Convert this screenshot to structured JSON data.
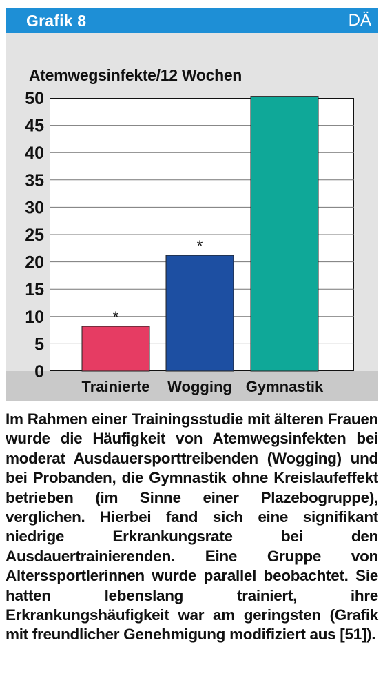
{
  "header": {
    "title": "Grafik 8",
    "logo": "DÄ"
  },
  "colors": {
    "header": "#1e8fd6",
    "bar_trainierte": "#e63c63",
    "bar_wogging": "#1d4fa2",
    "bar_gymnastik": "#0fa898",
    "frame": "#e3e3e3",
    "xband": "#c9c9c9"
  },
  "chart_data": {
    "type": "bar",
    "ylabel": "Atemwegsinfekte/12 Wochen",
    "categories": [
      "Trainierte",
      "Wogging",
      "Gymnastik"
    ],
    "values": [
      8.2,
      21.2,
      50.3
    ],
    "annotations": [
      "*",
      "*",
      ""
    ],
    "yticks": [
      "0",
      "5",
      "10",
      "15",
      "20",
      "25",
      "30",
      "35",
      "40",
      "45",
      "50"
    ],
    "ylim": [
      0,
      50
    ],
    "grid": true
  },
  "caption": "Im Rahmen einer Trainingsstudie mit älteren Frauen wurde die Häufigkeit von Atemwegsinfekten bei moderat Ausdauersporttreibenden (Wogging) und bei Probanden, die Gymnastik ohne Kreislaufeffekt betrieben (im Sinne einer Plazebogruppe), verglichen. Hierbei fand sich eine signifikant niedrige Erkrankungsrate bei den Ausdauertrainierenden. Eine Gruppe von Alterssportlerinnen wurde parallel beobachtet. Sie hatten lebenslang trainiert, ihre Erkrankungshäufigkeit war am geringsten (Grafik mit freundlicher Genehmigung modifiziert aus [51])."
}
